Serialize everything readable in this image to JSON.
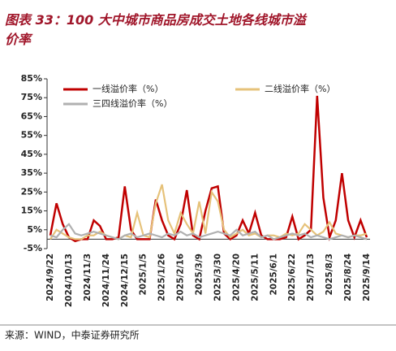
{
  "chart_data": {
    "type": "line",
    "title": "图表 33：100 大中城市商品房成交土地各线城市溢价率",
    "source": "来源：WIND，中泰证券研究所",
    "categories": [
      "2024/9/22",
      null,
      null,
      "2024/10/13",
      null,
      null,
      "2024/11/3",
      null,
      null,
      "2024/11/24",
      null,
      null,
      "2024/12/15",
      null,
      null,
      "2025/1/5",
      null,
      null,
      "2025/1/26",
      null,
      null,
      "2025/2/16",
      null,
      null,
      "2025/3/9",
      null,
      null,
      "2025/3/30",
      null,
      null,
      "2025/4/20",
      null,
      null,
      "2025/5/11",
      null,
      null,
      "2025/6/1",
      null,
      null,
      "2025/6/22",
      null,
      null,
      "2025/7/13",
      null,
      null,
      "2025/8/3",
      null,
      null,
      "2025/8/24",
      null,
      null,
      "2025/9/14"
    ],
    "series": [
      {
        "name": "一线溢价率（%）",
        "color": "#c00000",
        "values": [
          2,
          19,
          8,
          1,
          -1,
          0,
          0,
          10,
          7,
          0,
          0,
          1,
          28,
          5,
          0,
          0,
          0,
          21,
          10,
          2,
          0,
          8,
          26,
          2,
          0,
          15,
          27,
          28,
          3,
          0,
          2,
          10,
          3,
          14,
          2,
          0,
          0,
          0,
          1,
          12,
          0,
          2,
          5,
          76,
          22,
          1,
          10,
          35,
          10,
          1,
          10,
          1
        ]
      },
      {
        "name": "二线溢价率（%）",
        "color": "#e6c27a",
        "values": [
          0,
          5,
          3,
          1,
          0,
          0,
          2,
          2,
          4,
          2,
          1,
          0,
          2,
          1,
          14,
          2,
          1,
          19,
          29,
          10,
          3,
          14,
          8,
          3,
          20,
          3,
          25,
          20,
          5,
          1,
          3,
          5,
          2,
          3,
          1,
          2,
          2,
          1,
          3,
          2,
          3,
          8,
          5,
          2,
          4,
          9,
          3,
          2,
          1,
          2,
          2,
          3
        ]
      },
      {
        "name": "三四线溢价率（%）",
        "color": "#b0b0b0",
        "values": [
          2,
          1,
          5,
          8,
          3,
          2,
          3,
          4,
          3,
          2,
          1,
          0,
          2,
          3,
          1,
          2,
          3,
          2,
          1,
          3,
          2,
          4,
          2,
          3,
          1,
          2,
          3,
          4,
          3,
          2,
          5,
          2,
          3,
          4,
          1,
          2,
          0,
          1,
          2,
          3,
          2,
          3,
          1,
          2,
          1,
          0,
          1,
          2,
          1,
          2,
          1,
          0
        ]
      }
    ],
    "ylim": [
      -5,
      85
    ],
    "yticks": [
      {
        "value": -5,
        "label": "-5%"
      },
      {
        "value": 5,
        "label": "5%"
      },
      {
        "value": 15,
        "label": "15%"
      },
      {
        "value": 25,
        "label": "25%"
      },
      {
        "value": 35,
        "label": "35%"
      },
      {
        "value": 45,
        "label": "45%"
      },
      {
        "value": 55,
        "label": "55%"
      },
      {
        "value": 65,
        "label": "65%"
      },
      {
        "value": 75,
        "label": "75%"
      },
      {
        "value": 85,
        "label": "85%"
      }
    ],
    "grid": false
  }
}
